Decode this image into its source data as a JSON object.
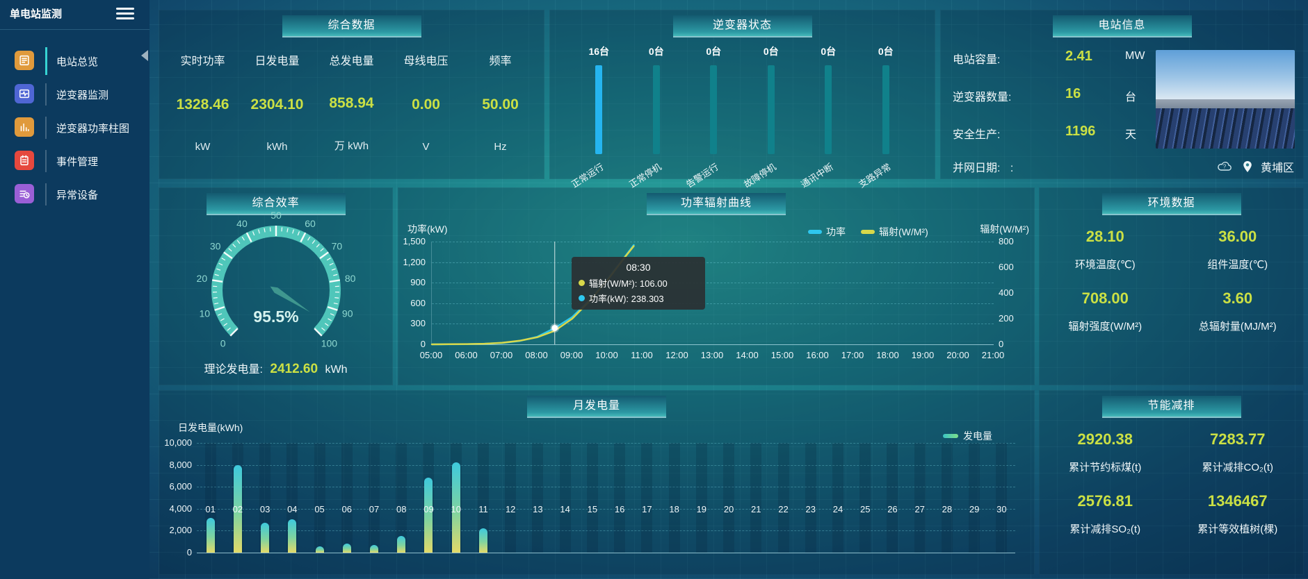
{
  "app": {
    "title": "单电站监测"
  },
  "accent_colors": {
    "value_yellow": "#cbe044",
    "active_bar_blue": "#25b5f0",
    "idle_bar_teal": "#10818b",
    "gauge_teal": "#4fc6ba"
  },
  "sidebar": {
    "items": [
      {
        "label": "电站总览",
        "icon": "overview-icon",
        "color": "#e09a3c",
        "active": true
      },
      {
        "label": "逆变器监测",
        "icon": "inverter-monitor-icon",
        "color": "#4f66d4",
        "active": false
      },
      {
        "label": "逆变器功率柱图",
        "icon": "power-bars-icon",
        "color": "#e09a3c",
        "active": false
      },
      {
        "label": "事件管理",
        "icon": "event-icon",
        "color": "#e6483e",
        "active": false
      },
      {
        "label": "异常设备",
        "icon": "abnormal-device-icon",
        "color": "#9a5fd6",
        "active": false
      }
    ]
  },
  "summary": {
    "title": "综合数据",
    "metrics": [
      {
        "label": "实时功率",
        "value": "1328.46",
        "unit": "kW"
      },
      {
        "label": "日发电量",
        "value": "2304.10",
        "unit": "kWh"
      },
      {
        "label": "总发电量",
        "value": "858.94",
        "unit": "万 kWh"
      },
      {
        "label": "母线电压",
        "value": "0.00",
        "unit": "V"
      },
      {
        "label": "频率",
        "value": "50.00",
        "unit": "Hz"
      }
    ]
  },
  "inverter_status": {
    "title": "逆变器状态"
  },
  "station_info": {
    "title": "电站信息",
    "rows": [
      {
        "label": "电站容量:",
        "value": "2.41",
        "unit": "MW"
      },
      {
        "label": "逆变器数量:",
        "value": "16",
        "unit": "台"
      },
      {
        "label": "安全生产:",
        "value": "1196",
        "unit": "天"
      }
    ],
    "grid_date_label": "并网日期:",
    "grid_date_value": ":",
    "location": "黄埔区"
  },
  "efficiency": {
    "title": "综合效率",
    "footer_label": "理论发电量:",
    "footer_value": "2412.60",
    "footer_unit": "kWh"
  },
  "power_curve": {
    "title": "功率辐射曲线",
    "y_left_label": "功率(kW)",
    "y_right_label": "辐射(W/M²)",
    "legend": [
      {
        "name": "功率",
        "color": "#2ec7ee"
      },
      {
        "name": "辐射(W/M²)",
        "color": "#d8d84a"
      }
    ],
    "tooltip": {
      "time": "08:30",
      "rows": [
        {
          "color": "#d8d84a",
          "text": "辐射(W/M²): 106.00"
        },
        {
          "color": "#2ec7ee",
          "text": "功率(kW): 238.303"
        }
      ]
    }
  },
  "environment": {
    "title": "环境数据",
    "cells": [
      {
        "value": "28.10",
        "label": "环境温度(℃)"
      },
      {
        "value": "36.00",
        "label": "组件温度(℃)"
      },
      {
        "value": "708.00",
        "label": "辐射强度(W/M²)"
      },
      {
        "value": "3.60",
        "label": "总辐射量(MJ/M²)"
      }
    ]
  },
  "monthly": {
    "title": "月发电量",
    "ylabel": "日发电量(kWh)",
    "legend": "发电量"
  },
  "savings": {
    "title": "节能减排",
    "cells": [
      {
        "value": "2920.38",
        "label": "累计节约标煤(t)"
      },
      {
        "value": "7283.77",
        "label": "累计减排CO₂(t)"
      },
      {
        "value": "2576.81",
        "label": "累计减排SO₂(t)"
      },
      {
        "value": "1346467",
        "label": "累计等效植树(棵)"
      }
    ]
  },
  "chart_data": [
    {
      "type": "bar",
      "title": "逆变器状态",
      "unit": "台",
      "categories": [
        "正常运行",
        "正常停机",
        "告警运行",
        "故障停机",
        "通讯中断",
        "支路异常"
      ],
      "values": [
        16,
        0,
        0,
        0,
        0,
        0
      ],
      "bar_color_active": "#25b5f0",
      "bar_color_zero": "#10818b"
    },
    {
      "type": "gauge",
      "title": "综合效率",
      "value": 95.5,
      "display": "95.5%",
      "min": 0,
      "max": 100,
      "major_tick": 10,
      "minor_tick": 2,
      "arc_color": "#4fc6ba",
      "label_color": "#8fd8d0"
    },
    {
      "type": "line",
      "title": "功率辐射曲线",
      "x_ticks": [
        "05:00",
        "06:00",
        "07:00",
        "08:00",
        "09:00",
        "10:00",
        "11:00",
        "12:00",
        "13:00",
        "14:00",
        "15:00",
        "16:00",
        "17:00",
        "18:00",
        "19:00",
        "20:00",
        "21:00"
      ],
      "xlim": [
        5,
        21
      ],
      "left_axis": {
        "label": "功率(kW)",
        "ticks": [
          0,
          300,
          600,
          900,
          1200,
          1500
        ],
        "max": 1500
      },
      "right_axis": {
        "label": "辐射(W/M²)",
        "ticks": [
          0,
          200,
          400,
          600,
          800
        ],
        "max": 800
      },
      "series": [
        {
          "name": "功率",
          "color": "#2ec7ee",
          "axis": "left",
          "points": [
            [
              5,
              0
            ],
            [
              5.5,
              1
            ],
            [
              6,
              3
            ],
            [
              6.5,
              9
            ],
            [
              7,
              20
            ],
            [
              7.5,
              50
            ],
            [
              8,
              110
            ],
            [
              8.5,
              238.3
            ],
            [
              9,
              400
            ],
            [
              9.5,
              650
            ],
            [
              10,
              950
            ],
            [
              10.5,
              1280
            ],
            [
              10.75,
              1450
            ]
          ]
        },
        {
          "name": "辐射",
          "color": "#d8d84a",
          "axis": "right",
          "points": [
            [
              5,
              0
            ],
            [
              5.5,
              1
            ],
            [
              6,
              2
            ],
            [
              6.5,
              5
            ],
            [
              7,
              12
            ],
            [
              7.5,
              28
            ],
            [
              8,
              55
            ],
            [
              8.5,
              106
            ],
            [
              9,
              200
            ],
            [
              9.5,
              340
            ],
            [
              10,
              500
            ],
            [
              10.5,
              680
            ],
            [
              10.75,
              765
            ]
          ]
        }
      ],
      "highlight": {
        "x": 8.5,
        "power": 238.303,
        "radiation": 106.0
      },
      "legend_position": "top-right",
      "grid": "dashed-horizontal"
    },
    {
      "type": "bar",
      "title": "月发电量",
      "ylabel": "日发电量(kWh)",
      "legend": "发电量",
      "ylim": [
        0,
        10000
      ],
      "categories": [
        "01",
        "02",
        "03",
        "04",
        "05",
        "06",
        "07",
        "08",
        "09",
        "10",
        "11",
        "12",
        "13",
        "14",
        "15",
        "16",
        "17",
        "18",
        "19",
        "20",
        "21",
        "22",
        "23",
        "24",
        "25",
        "26",
        "27",
        "28",
        "29",
        "30"
      ],
      "values": [
        3150,
        8000,
        2720,
        3050,
        550,
        800,
        680,
        1550,
        6850,
        8200,
        2230,
        0,
        0,
        0,
        0,
        0,
        0,
        0,
        0,
        0,
        0,
        0,
        0,
        0,
        0,
        0,
        0,
        0,
        0,
        0
      ]
    }
  ]
}
